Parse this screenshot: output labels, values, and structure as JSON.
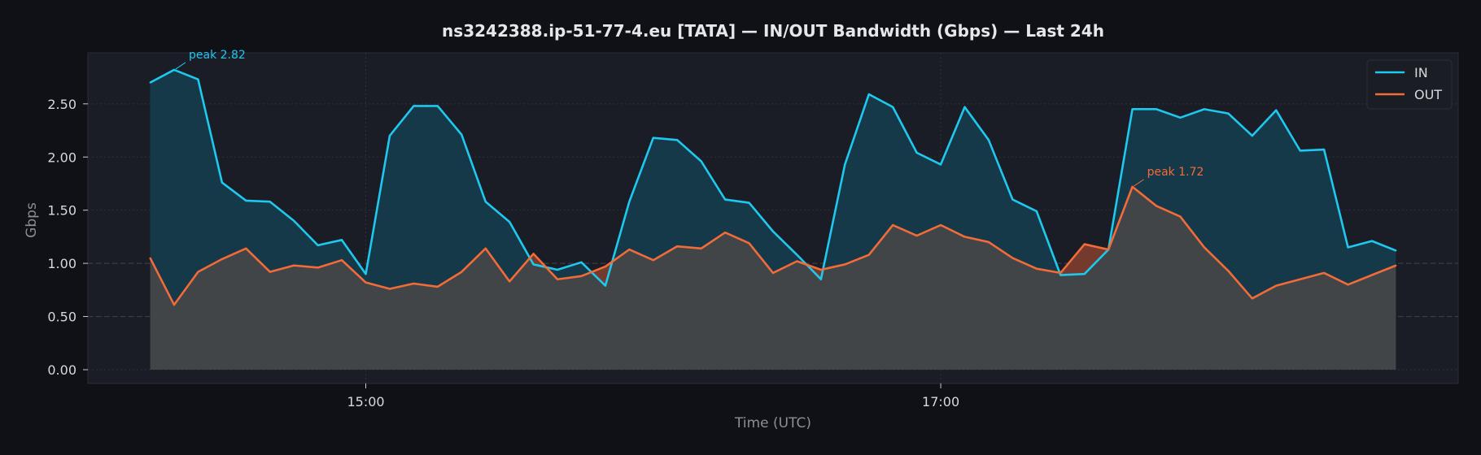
{
  "chart_data": {
    "type": "area",
    "title": "ns3242388.ip-51-77-4.eu [TATA] — IN/OUT Bandwidth (Gbps) — Last 24h",
    "xlabel": "Time (UTC)",
    "ylabel": "Gbps",
    "ylim": [
      -0.13,
      2.98
    ],
    "xlim": [
      "14:02",
      "18:48"
    ],
    "grid": true,
    "legend": "top-right",
    "y_ticks": [
      "0.00",
      "0.50",
      "1.00",
      "1.50",
      "2.00",
      "2.50"
    ],
    "x_ticks": [
      "15:00",
      "17:00"
    ],
    "x": [
      "14:15",
      "14:20",
      "14:25",
      "14:30",
      "14:35",
      "14:40",
      "14:45",
      "14:50",
      "14:55",
      "15:00",
      "15:05",
      "15:10",
      "15:15",
      "15:20",
      "15:25",
      "15:30",
      "15:35",
      "15:40",
      "15:45",
      "15:50",
      "15:55",
      "16:00",
      "16:05",
      "16:10",
      "16:15",
      "16:20",
      "16:25",
      "16:30",
      "16:35",
      "16:40",
      "16:45",
      "16:50",
      "16:55",
      "17:00",
      "17:05",
      "17:10",
      "17:15",
      "17:20",
      "17:25",
      "17:30",
      "17:35",
      "17:40",
      "17:45",
      "17:50",
      "17:55",
      "18:00",
      "18:05",
      "18:10",
      "18:15",
      "18:20",
      "18:25",
      "18:30",
      "18:35"
    ],
    "series": [
      {
        "name": "IN",
        "color": "#1ec8ee",
        "values": [
          2.7,
          2.82,
          2.73,
          1.76,
          1.59,
          1.58,
          1.4,
          1.17,
          1.22,
          0.9,
          2.2,
          2.48,
          2.48,
          2.21,
          1.58,
          1.39,
          0.99,
          0.94,
          1.01,
          0.79,
          1.58,
          2.18,
          2.16,
          1.96,
          1.6,
          1.57,
          1.3,
          1.08,
          0.85,
          1.93,
          2.59,
          2.47,
          2.04,
          1.93,
          2.47,
          2.16,
          1.6,
          1.49,
          0.89,
          0.9,
          1.13,
          2.45,
          2.45,
          2.37,
          2.45,
          2.41,
          2.2,
          2.44,
          2.06,
          2.07,
          1.15,
          1.21,
          1.12
        ]
      },
      {
        "name": "OUT",
        "color": "#f26b38",
        "values": [
          1.05,
          0.61,
          0.92,
          1.04,
          1.14,
          0.92,
          0.98,
          0.96,
          1.03,
          0.82,
          0.76,
          0.81,
          0.78,
          0.92,
          1.14,
          0.83,
          1.09,
          0.85,
          0.88,
          0.97,
          1.13,
          1.03,
          1.16,
          1.14,
          1.29,
          1.19,
          0.91,
          1.02,
          0.94,
          0.99,
          1.08,
          1.36,
          1.26,
          1.36,
          1.25,
          1.2,
          1.05,
          0.95,
          0.91,
          1.18,
          1.13,
          1.72,
          1.54,
          1.44,
          1.15,
          0.93,
          0.67,
          0.79,
          0.85,
          0.91,
          0.8,
          0.89,
          0.98
        ]
      }
    ],
    "annotations": [
      {
        "text": "peak 2.82",
        "series": "IN",
        "index": 1,
        "color": "#1ec8ee"
      },
      {
        "text": "peak 1.72",
        "series": "OUT",
        "index": 41,
        "color": "#f26b38"
      }
    ],
    "colors": {
      "background": "#0f1116",
      "plot_background": "#1b1d26",
      "grid": "#2e313b",
      "reference_line": "#3a3d45",
      "in_fill": "#153b4b",
      "out_fill": "#434548",
      "crossover_fill": "#7a3a2a"
    }
  }
}
